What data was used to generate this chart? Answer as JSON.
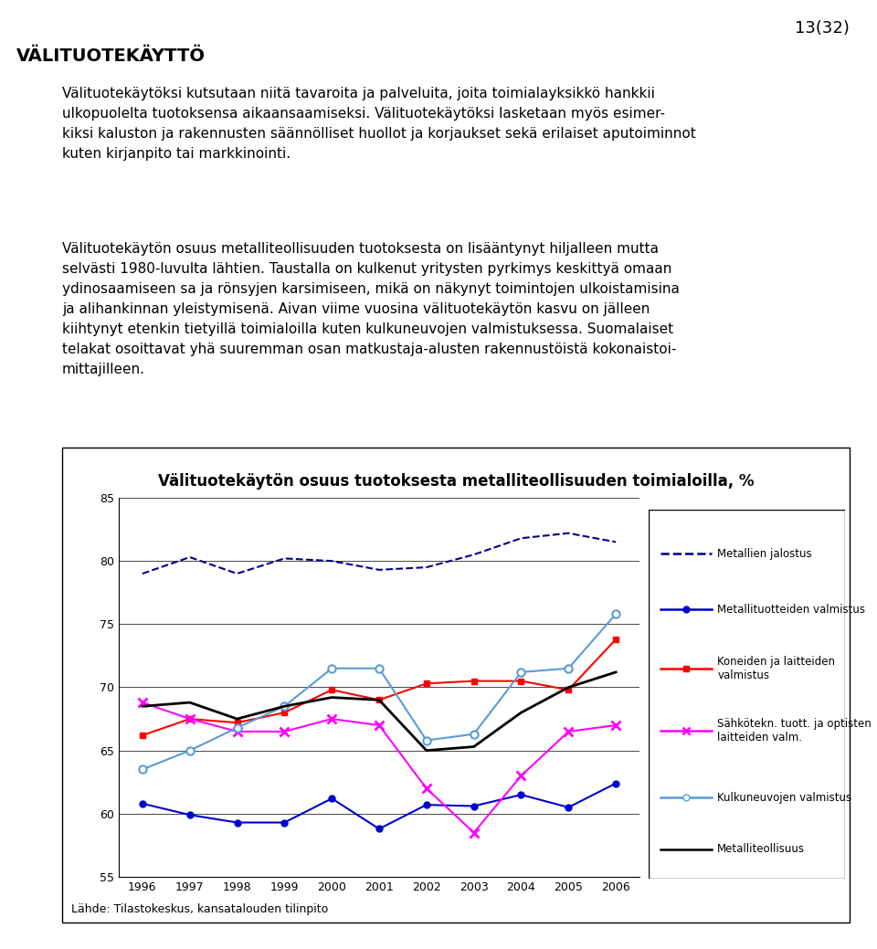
{
  "years": [
    1996,
    1997,
    1998,
    1999,
    2000,
    2001,
    2002,
    2003,
    2004,
    2005,
    2006
  ],
  "metallien_jalostus": [
    79.0,
    80.3,
    79.0,
    80.2,
    80.0,
    79.3,
    79.5,
    80.5,
    81.8,
    82.2,
    81.5
  ],
  "metallituotteiden_valmistus": [
    60.8,
    59.9,
    59.3,
    59.3,
    61.2,
    58.8,
    60.7,
    60.6,
    61.5,
    60.5,
    62.4
  ],
  "koneiden_laitteiden_valmistus": [
    66.2,
    67.5,
    67.2,
    68.0,
    69.8,
    69.0,
    70.3,
    70.5,
    70.5,
    69.8,
    73.8
  ],
  "sahkotekn_tuott": [
    68.8,
    67.5,
    66.5,
    66.5,
    67.5,
    67.0,
    62.0,
    58.5,
    63.0,
    66.5,
    67.0
  ],
  "kulkuneuvojen_valmistus": [
    63.5,
    65.0,
    66.8,
    68.5,
    71.5,
    71.5,
    65.8,
    66.3,
    71.2,
    71.5,
    75.8
  ],
  "metalliteollisuus": [
    68.5,
    68.8,
    67.5,
    68.5,
    69.2,
    69.0,
    65.0,
    65.3,
    68.0,
    70.0,
    71.2
  ],
  "chart_title": "Välituotekäytön osuus tuotoksesta metalliteollisuuden toimialoilla, %",
  "ylim": [
    55,
    85
  ],
  "yticks": [
    55,
    60,
    65,
    70,
    75,
    80,
    85
  ],
  "page_number": "13(32)",
  "heading": "VÄLITUOTEKÄYTTÖ",
  "source_text": "Lähde: Tilastokeskus, kansatalouden tilinpito",
  "legend_labels": [
    "Metallien jalostus",
    "Metallituotteiden valmistus",
    "Koneiden ja laitteiden valmistus",
    "Sähkötekn. tuott. ja optisten\nlaitteiden valm.",
    "Kulkuneuvojen valmistus",
    "Metalliteollisuus"
  ]
}
